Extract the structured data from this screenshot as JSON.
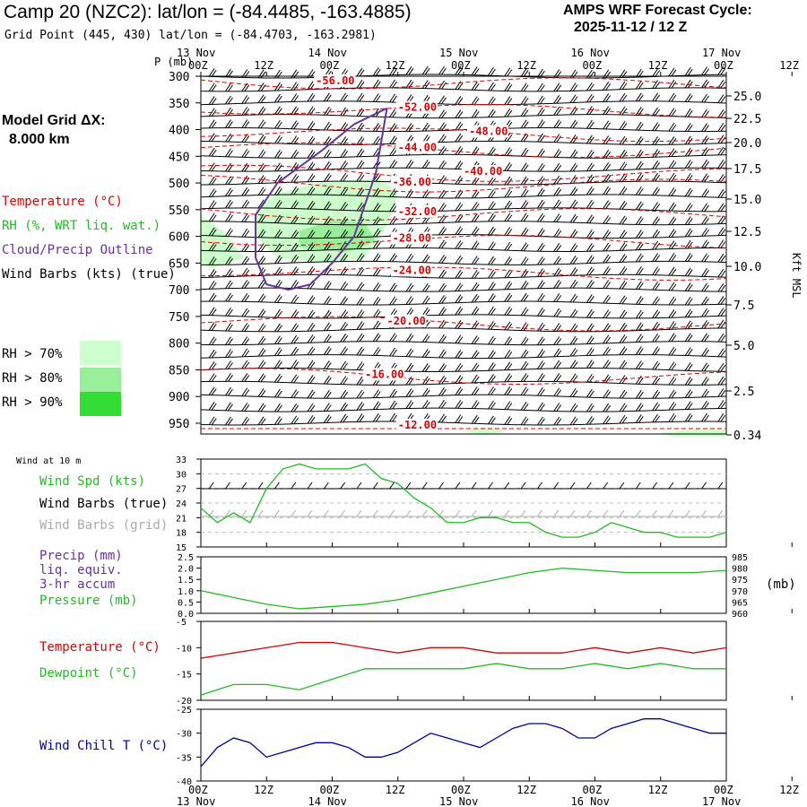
{
  "header": {
    "title": "Camp 20 (NZC2):  lat/lon = (-84.4485, -163.4885)",
    "subtitle": "Grid Point (445, 430) lat/lon = (-84.4703, -163.2981)",
    "cycle_line1": "AMPS WRF Forecast Cycle:",
    "cycle_line2": "2025-11-12 / 12  Z",
    "grid_line1": "Model Grid ΔX:",
    "grid_line2": "8.000 km"
  },
  "legend_main": {
    "temperature": "Temperature (°C)",
    "rh": "RH (%, WRT liq. wat.)",
    "cloud": "Cloud/Precip Outline",
    "wind": "Wind Barbs (kts) (true)",
    "rh_levels": [
      "RH > 70%",
      "RH > 80%",
      "RH > 90%"
    ]
  },
  "colors": {
    "temperature": "#dd0000",
    "rh": "#22bb22",
    "cloud": "#663399",
    "wind_chill": "#000099",
    "rh70": "#ccffcc",
    "rh80": "#99ee99",
    "rh90": "#33dd33"
  },
  "time_axis": {
    "labels": [
      "00Z",
      "12Z",
      "00Z",
      "12Z",
      "00Z",
      "12Z",
      "00Z",
      "12Z",
      "00Z",
      "12Z"
    ],
    "top_days": [
      "13 Nov",
      "14 Nov",
      "15 Nov",
      "16 Nov",
      "17 Nov"
    ],
    "bottom_days": [
      "13 Nov",
      "14 Nov",
      "15 Nov",
      "16 Nov",
      "17 Nov"
    ]
  },
  "panel_labels": {
    "wind10m": "Wind at 10 m",
    "wind_spd": "Wind Spd (kts)",
    "barbs_true": "Wind Barbs (true)",
    "barbs_grid": "Wind Barbs (grid)",
    "precip1": "Precip (mm)",
    "precip2": "liq. equiv.",
    "precip3": "3-hr accum",
    "pressure": "Pressure (mb)",
    "pressure_unit": "(mb)",
    "temperature": "Temperature (°C)",
    "dewpoint": "Dewpoint (°C)",
    "windchill": "Wind Chill T (°C)",
    "p_axis": "P (mb)",
    "kft": "Kft MSL"
  },
  "chart_data": [
    {
      "type": "line",
      "name": "cross-section",
      "p_ticks": [
        300,
        350,
        400,
        450,
        500,
        550,
        600,
        650,
        700,
        750,
        800,
        850,
        900,
        950
      ],
      "kft_ticks": [
        "25.0",
        "22.5",
        "20.0",
        "17.5",
        "15.0",
        "12.5",
        "10.0",
        "7.5",
        "5.0",
        "2.5",
        "0.34"
      ],
      "isotherm_labels": [
        {
          "label": "-56.00",
          "t": 21,
          "p": 315
        },
        {
          "label": "-52.00",
          "t": 36,
          "p": 365
        },
        {
          "label": "-48.00",
          "t": 49,
          "p": 410
        },
        {
          "label": "-44.00",
          "t": 36,
          "p": 440
        },
        {
          "label": "-40.00",
          "t": 48,
          "p": 485
        },
        {
          "label": "-36.00",
          "t": 35,
          "p": 505
        },
        {
          "label": "-32.00",
          "t": 36,
          "p": 560
        },
        {
          "label": "-28.00",
          "t": 35,
          "p": 610
        },
        {
          "label": "-24.00",
          "t": 35,
          "p": 670
        },
        {
          "label": "-20.00",
          "t": 34,
          "p": 765
        },
        {
          "label": "-16.00",
          "t": 30,
          "p": 865
        },
        {
          "label": "-12.00",
          "t": 36,
          "p": 980
        }
      ]
    },
    {
      "type": "line",
      "name": "wind-speed",
      "ylim": [
        15,
        33
      ],
      "yticks": [
        15,
        18,
        21,
        24,
        27,
        30,
        33
      ],
      "x": [
        0,
        3,
        6,
        9,
        12,
        15,
        18,
        21,
        24,
        27,
        30,
        33,
        36,
        39,
        42,
        45,
        48,
        51,
        54,
        57,
        60,
        63,
        66,
        69,
        72,
        75,
        78,
        81,
        84,
        87,
        90,
        93,
        96
      ],
      "values": [
        23,
        20,
        22,
        20,
        27,
        31,
        32,
        31,
        31,
        31,
        32,
        29,
        28,
        25,
        23,
        20,
        20,
        21,
        21,
        20,
        20,
        18,
        17,
        17,
        18,
        20,
        19,
        18,
        18,
        17,
        17,
        17,
        18
      ]
    },
    {
      "type": "line",
      "name": "pressure",
      "ylim": [
        960,
        985
      ],
      "yticks": [
        960,
        965,
        970,
        975,
        980,
        985
      ],
      "precip_ylim": [
        0,
        2.5
      ],
      "precip_ticks": [
        "0.0",
        "0.5",
        "1.0",
        "1.5",
        "2.0",
        "2.5"
      ],
      "x": [
        0,
        6,
        12,
        18,
        24,
        30,
        36,
        42,
        48,
        54,
        60,
        66,
        72,
        78,
        84,
        90,
        96
      ],
      "values": [
        970,
        967,
        964,
        962,
        963,
        964,
        966,
        969,
        972,
        975,
        978,
        980,
        979,
        978,
        978,
        978,
        979
      ]
    },
    {
      "type": "line",
      "name": "temperature-dewpoint",
      "ylim": [
        -20,
        -5
      ],
      "yticks": [
        -20,
        -15,
        -10,
        -5
      ],
      "x": [
        0,
        6,
        12,
        18,
        24,
        30,
        36,
        42,
        48,
        54,
        60,
        66,
        72,
        78,
        84,
        90,
        96
      ],
      "series": [
        {
          "name": "Temperature",
          "values": [
            -12,
            -11,
            -10,
            -9,
            -9,
            -10,
            -11,
            -10,
            -10,
            -11,
            -11,
            -11,
            -10,
            -11,
            -10,
            -11,
            -10
          ]
        },
        {
          "name": "Dewpoint",
          "values": [
            -19,
            -17,
            -17,
            -18,
            -16,
            -14,
            -14,
            -14,
            -14,
            -13,
            -14,
            -14,
            -13,
            -14,
            -13,
            -14,
            -14
          ]
        }
      ]
    },
    {
      "type": "line",
      "name": "wind-chill",
      "ylim": [
        -40,
        -25
      ],
      "yticks": [
        -40,
        -35,
        -30,
        -25
      ],
      "x": [
        0,
        3,
        6,
        9,
        12,
        15,
        18,
        21,
        24,
        27,
        30,
        33,
        36,
        39,
        42,
        45,
        48,
        51,
        54,
        57,
        60,
        63,
        66,
        69,
        72,
        75,
        78,
        81,
        84,
        87,
        90,
        93,
        96
      ],
      "values": [
        -37,
        -33,
        -31,
        -32,
        -35,
        -34,
        -33,
        -32,
        -32,
        -33,
        -35,
        -35,
        -34,
        -32,
        -30,
        -31,
        -32,
        -33,
        -31,
        -29,
        -28,
        -28,
        -29,
        -31,
        -31,
        -29,
        -28,
        -27,
        -27,
        -28,
        -29,
        -30,
        -30
      ]
    }
  ]
}
